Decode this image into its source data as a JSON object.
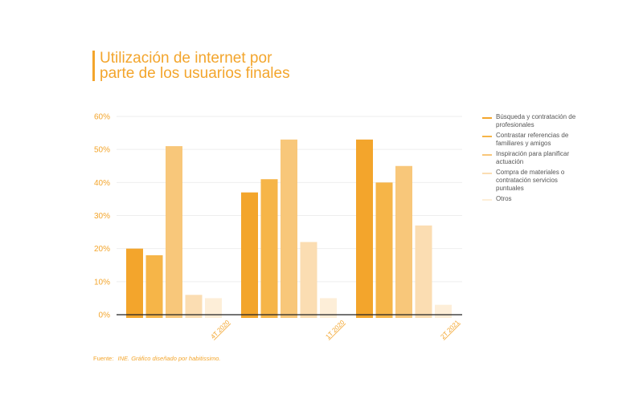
{
  "title": {
    "line1": "Utilización de internet por",
    "line2": "parte de los usuarios finales"
  },
  "source": {
    "label": "Fuente:",
    "text": "INE. Gráfico diseñado por habitissimo."
  },
  "chart_data": {
    "type": "bar",
    "categories": [
      "4T 2020",
      "1T 2020",
      "2T 2021"
    ],
    "y_tick_labels": [
      "0%",
      "10%",
      "20%",
      "30%",
      "40%",
      "50%",
      "60%"
    ],
    "ylim": [
      0,
      60
    ],
    "unit": "%",
    "grid": true,
    "legend_position": "right",
    "series": [
      {
        "name": "Búsqueda y contratación de profesionales",
        "color": "#f3a52c",
        "values": [
          20,
          37,
          53
        ]
      },
      {
        "name": "Contrastar referencias de familiares y amigos",
        "color": "#f6b548",
        "values": [
          18,
          41,
          40
        ]
      },
      {
        "name": "Inspiración para planificar actuación",
        "color": "#f8c77a",
        "values": [
          51,
          53,
          45
        ]
      },
      {
        "name": "Compra de materiales o contratación servicios puntuales",
        "color": "#fbddb2",
        "values": [
          6,
          22,
          27
        ]
      },
      {
        "name": "Otros",
        "color": "#fdeed8",
        "values": [
          5,
          5,
          3
        ]
      }
    ]
  }
}
